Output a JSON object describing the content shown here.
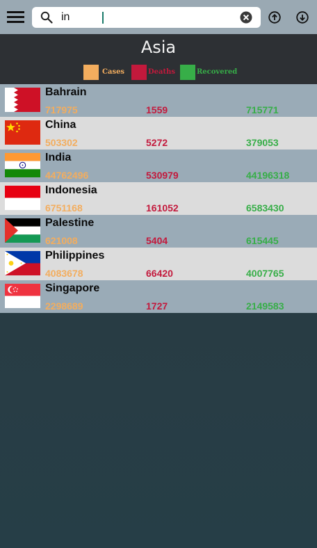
{
  "search": {
    "value": "in",
    "placeholder": ""
  },
  "region": {
    "title": "Asia"
  },
  "legend": [
    {
      "label": "Cases",
      "color": "#f3ad5e"
    },
    {
      "label": "Deaths",
      "color": "#c3193c"
    },
    {
      "label": "Recovered",
      "color": "#37ae48"
    }
  ],
  "countries": [
    {
      "name": "Bahrain",
      "cases": "717975",
      "deaths": "1559",
      "recovered": "715771",
      "flag": "bahrain-flag"
    },
    {
      "name": "China",
      "cases": "503302",
      "deaths": "5272",
      "recovered": "379053",
      "flag": "china-flag"
    },
    {
      "name": "India",
      "cases": "44762496",
      "deaths": "530979",
      "recovered": "44196318",
      "flag": "india-flag"
    },
    {
      "name": "Indonesia",
      "cases": "6751168",
      "deaths": "161052",
      "recovered": "6583430",
      "flag": "indonesia-flag"
    },
    {
      "name": "Palestine",
      "cases": "621008",
      "deaths": "5404",
      "recovered": "615445",
      "flag": "palestine-flag"
    },
    {
      "name": "Philippines",
      "cases": "4083678",
      "deaths": "66420",
      "recovered": "4007765",
      "flag": "philippines-flag"
    },
    {
      "name": "Singapore",
      "cases": "2298689",
      "deaths": "1727",
      "recovered": "2149583",
      "flag": "singapore-flag"
    }
  ]
}
